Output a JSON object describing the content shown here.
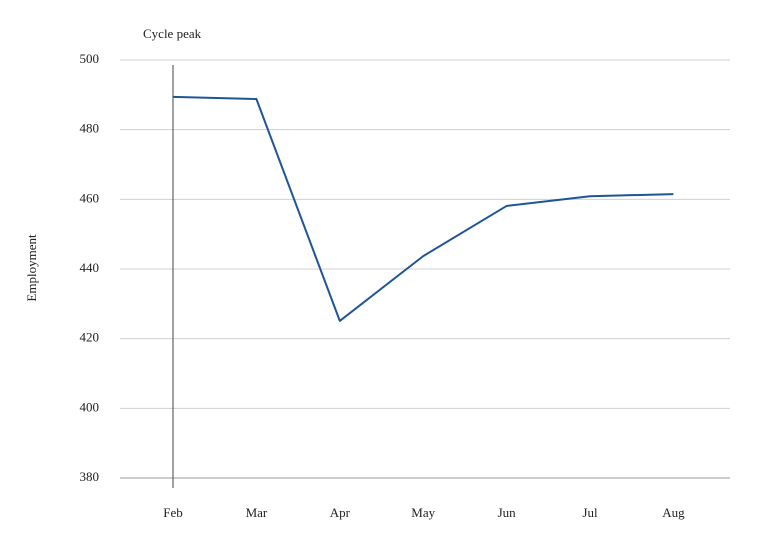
{
  "chart_data": {
    "type": "line",
    "y_label": "Employment",
    "categories": [
      "Feb",
      "Mar",
      "Apr",
      "May",
      "Jun",
      "Jul",
      "Aug"
    ],
    "series": [
      {
        "name": "Employment",
        "color": "#1f5596",
        "values": [
          489.4,
          488.8,
          425.1,
          443.7,
          458.1,
          460.9,
          461.5
        ]
      }
    ],
    "ylim": [
      380,
      500
    ],
    "yticks": [
      380,
      400,
      420,
      440,
      460,
      480,
      500
    ],
    "grid": true,
    "annotations": [
      {
        "text": "Cycle peak",
        "x": "Feb"
      }
    ]
  }
}
